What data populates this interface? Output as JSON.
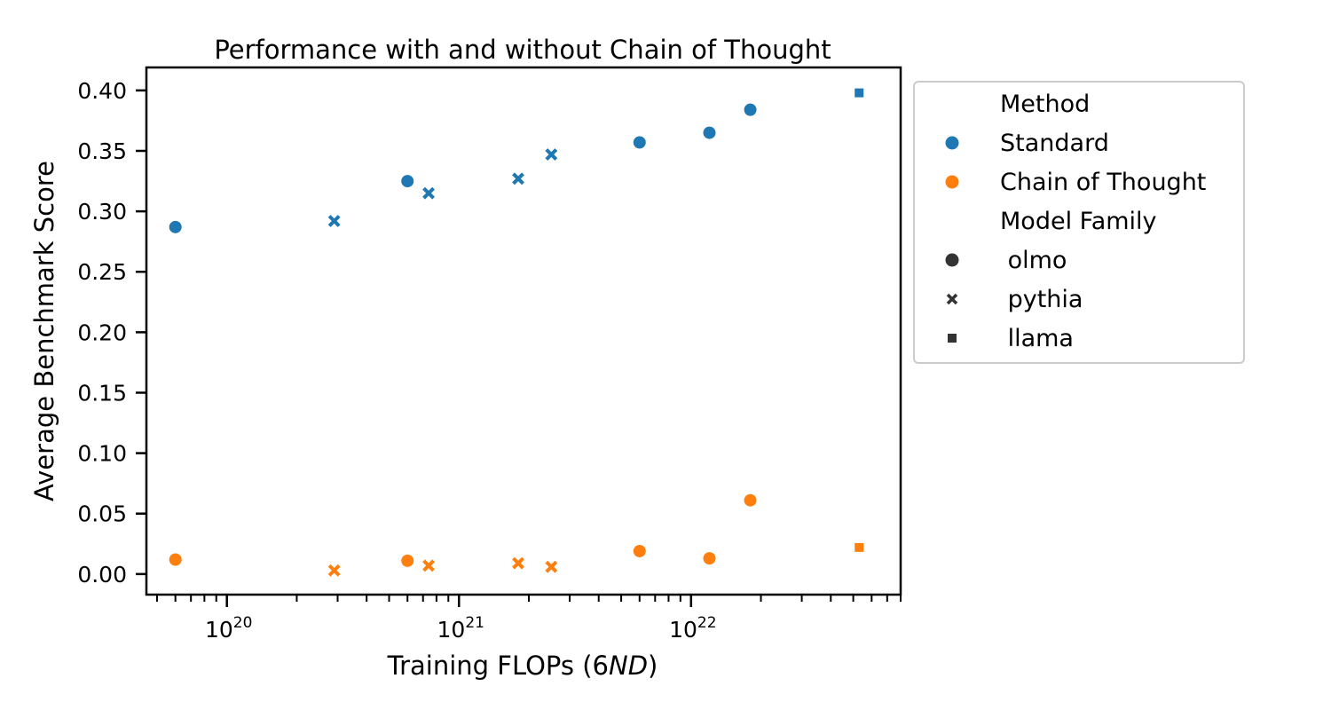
{
  "chart_data": {
    "type": "scatter",
    "title": "Performance with and without Chain of Thought",
    "xlabel_prefix": "Training FLOPs (6",
    "xlabel_italic": "ND",
    "xlabel_suffix": ")",
    "ylabel": "Average Benchmark Score",
    "xscale": "log",
    "xlim": [
      4.5e+19,
      8e+22
    ],
    "ylim": [
      -0.017,
      0.419
    ],
    "xticks": [
      {
        "value": 1e+20,
        "base": "10",
        "exp": "20"
      },
      {
        "value": 1e+21,
        "base": "10",
        "exp": "21"
      },
      {
        "value": 1e+22,
        "base": "10",
        "exp": "22"
      }
    ],
    "yticks": [
      "0.00",
      "0.05",
      "0.10",
      "0.15",
      "0.20",
      "0.25",
      "0.30",
      "0.35",
      "0.40"
    ],
    "legend": {
      "placement": "outside-right",
      "method_title": "Method",
      "family_title": "Model Family",
      "methods": [
        {
          "name": "Standard",
          "color": "#1f77b4"
        },
        {
          "name": "Chain of Thought",
          "color": "#ff7f0e"
        }
      ],
      "families": [
        {
          "name": " olmo",
          "marker": "circle"
        },
        {
          "name": " pythia",
          "marker": "x"
        },
        {
          "name": " llama",
          "marker": "square"
        }
      ],
      "marker_color": "#333333"
    },
    "series": [
      {
        "name": "Standard",
        "color": "#1f77b4",
        "points": [
          {
            "x": 6e+19,
            "y": 0.287,
            "family": "olmo"
          },
          {
            "x": 2.9e+20,
            "y": 0.292,
            "family": "pythia"
          },
          {
            "x": 6e+20,
            "y": 0.325,
            "family": "olmo"
          },
          {
            "x": 7.4e+20,
            "y": 0.315,
            "family": "pythia"
          },
          {
            "x": 1.8e+21,
            "y": 0.327,
            "family": "pythia"
          },
          {
            "x": 2.5e+21,
            "y": 0.347,
            "family": "pythia"
          },
          {
            "x": 6e+21,
            "y": 0.357,
            "family": "olmo"
          },
          {
            "x": 1.2e+22,
            "y": 0.365,
            "family": "olmo"
          },
          {
            "x": 1.8e+22,
            "y": 0.384,
            "family": "olmo"
          },
          {
            "x": 5.3e+22,
            "y": 0.398,
            "family": "llama"
          }
        ]
      },
      {
        "name": "Chain of Thought",
        "color": "#ff7f0e",
        "points": [
          {
            "x": 6e+19,
            "y": 0.012,
            "family": "olmo"
          },
          {
            "x": 2.9e+20,
            "y": 0.003,
            "family": "pythia"
          },
          {
            "x": 6e+20,
            "y": 0.011,
            "family": "olmo"
          },
          {
            "x": 7.4e+20,
            "y": 0.007,
            "family": "pythia"
          },
          {
            "x": 1.8e+21,
            "y": 0.009,
            "family": "pythia"
          },
          {
            "x": 2.5e+21,
            "y": 0.006,
            "family": "pythia"
          },
          {
            "x": 6e+21,
            "y": 0.019,
            "family": "olmo"
          },
          {
            "x": 1.2e+22,
            "y": 0.013,
            "family": "olmo"
          },
          {
            "x": 1.8e+22,
            "y": 0.061,
            "family": "olmo"
          },
          {
            "x": 5.3e+22,
            "y": 0.022,
            "family": "llama"
          }
        ]
      }
    ]
  }
}
